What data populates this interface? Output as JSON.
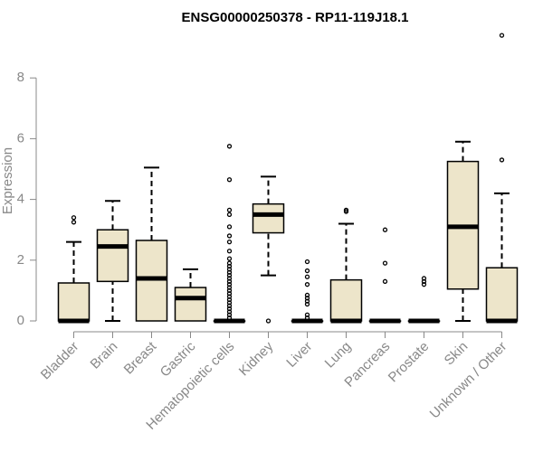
{
  "chart_data": {
    "type": "box",
    "title": "ENSG00000250378 - RP11-119J18.1",
    "xlabel": "",
    "ylabel": "Expression",
    "ylim": [
      0,
      9.5
    ],
    "yticks": [
      0,
      2,
      4,
      6,
      8
    ],
    "grid": false,
    "categories": [
      "Bladder",
      "Brain",
      "Breast",
      "Gastric",
      "Hematopoietic cells",
      "Kidney",
      "Liver",
      "Lung",
      "Pancreas",
      "Prostate",
      "Skin",
      "Unknown / Other"
    ],
    "boxes": [
      {
        "min": 0,
        "q1": 0,
        "median": 0,
        "q3": 1.25,
        "max": 2.6,
        "outliers": [
          3.25,
          3.4
        ]
      },
      {
        "min": 0,
        "q1": 1.3,
        "median": 2.45,
        "q3": 3.0,
        "max": 3.95,
        "outliers": []
      },
      {
        "min": 0,
        "q1": 0,
        "median": 1.4,
        "q3": 2.65,
        "max": 5.05,
        "outliers": []
      },
      {
        "min": 0,
        "q1": 0,
        "median": 0.75,
        "q3": 1.1,
        "max": 1.7,
        "outliers": []
      },
      {
        "min": 0,
        "q1": 0,
        "median": 0,
        "q3": 0,
        "max": 0,
        "outliers": [
          0.1,
          0.2,
          0.3,
          0.4,
          0.5,
          0.6,
          0.7,
          0.8,
          0.9,
          1.0,
          1.1,
          1.2,
          1.3,
          1.4,
          1.5,
          1.6,
          1.7,
          1.8,
          1.9,
          2.05,
          2.3,
          2.6,
          2.8,
          3.1,
          3.5,
          3.65,
          4.65,
          5.75
        ]
      },
      {
        "min": 1.5,
        "q1": 2.9,
        "median": 3.5,
        "q3": 3.85,
        "max": 4.75,
        "outliers": [
          0
        ]
      },
      {
        "min": 0,
        "q1": 0,
        "median": 0,
        "q3": 0,
        "max": 0,
        "outliers": [
          0.1,
          0.2,
          0.55,
          0.65,
          0.75,
          0.85,
          1.2,
          1.45,
          1.65,
          1.95
        ]
      },
      {
        "min": 0,
        "q1": 0,
        "median": 0,
        "q3": 1.35,
        "max": 3.2,
        "outliers": [
          3.6,
          3.65
        ]
      },
      {
        "min": 0,
        "q1": 0,
        "median": 0,
        "q3": 0,
        "max": 0,
        "outliers": [
          1.3,
          1.9,
          3.0
        ]
      },
      {
        "min": 0,
        "q1": 0,
        "median": 0,
        "q3": 0,
        "max": 0,
        "outliers": [
          1.2,
          1.3,
          1.4
        ]
      },
      {
        "min": 0,
        "q1": 1.05,
        "median": 3.1,
        "q3": 5.25,
        "max": 5.9,
        "outliers": []
      },
      {
        "min": 0,
        "q1": 0,
        "median": 0,
        "q3": 1.75,
        "max": 4.2,
        "outliers": [
          5.3,
          9.4
        ]
      }
    ],
    "colors": {
      "box_fill": "#ede5ca",
      "stroke": "#000000",
      "axis": "#888888"
    }
  }
}
